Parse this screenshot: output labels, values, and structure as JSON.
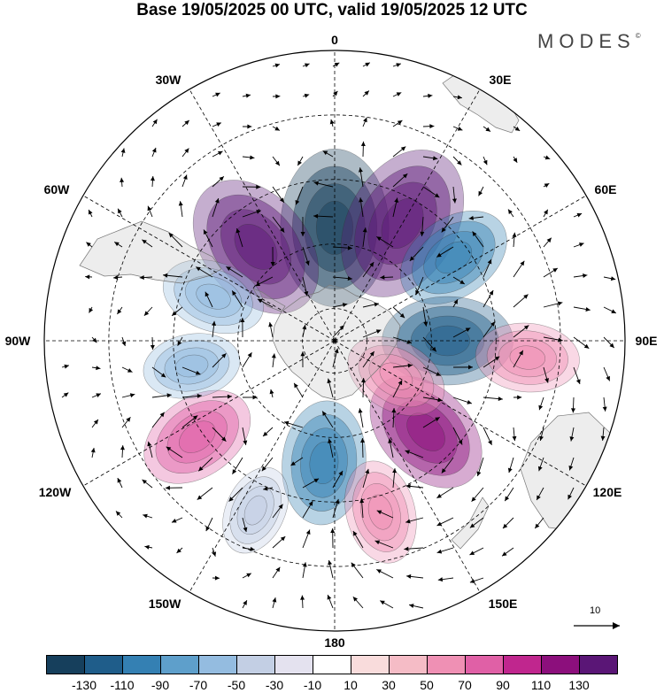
{
  "title": "Base 19/05/2025 00 UTC, valid 19/05/2025 12 UTC",
  "brand": "MODES",
  "brand_mark": "©",
  "longitude_labels": [
    "0",
    "30E",
    "60E",
    "90E",
    "120E",
    "150E",
    "180",
    "150W",
    "120W",
    "90W",
    "60W",
    "30W"
  ],
  "vector_reference": "10",
  "colorbar": {
    "colors": [
      "#163f5c",
      "#1f5d8a",
      "#3480b3",
      "#5e9fcb",
      "#94bce0",
      "#c3cfe4",
      "#e4e2ef",
      "#ffffff",
      "#f9dcdc",
      "#f5bcc6",
      "#ef90b4",
      "#e060a6",
      "#c0268e",
      "#8c0f7c",
      "#5a1676"
    ],
    "tick_labels": [
      "-130",
      "-110",
      "-90",
      "-70",
      "-50",
      "-30",
      "-10",
      "10",
      "30",
      "50",
      "70",
      "90",
      "110",
      "130"
    ]
  },
  "anomaly_centers": [
    {
      "lon_lat": "0E,-55",
      "value": -140,
      "color": "#163f5c"
    },
    {
      "lon_lat": "40W,-52",
      "value": 130,
      "color": "#5a1676"
    },
    {
      "lon_lat": "30E,-48",
      "value": 140,
      "color": "#5a1676"
    },
    {
      "lon_lat": "55E,-45",
      "value": -80,
      "color": "#3480b3"
    },
    {
      "lon_lat": "90E,-55",
      "value": -100,
      "color": "#1f5d8a"
    },
    {
      "lon_lat": "95E,-30",
      "value": 60,
      "color": "#ef90b4"
    },
    {
      "lon_lat": "135E,-50",
      "value": 100,
      "color": "#8c0f7c"
    },
    {
      "lon_lat": "120E,-68",
      "value": 60,
      "color": "#ef90b4"
    },
    {
      "lon_lat": "175W,-52",
      "value": -90,
      "color": "#3480b3"
    },
    {
      "lon_lat": "125W,-38",
      "value": 80,
      "color": "#e060a6"
    },
    {
      "lon_lat": "100W,-45",
      "value": -50,
      "color": "#94bce0"
    },
    {
      "lon_lat": "70W,-50",
      "value": -60,
      "color": "#94bce0"
    },
    {
      "lon_lat": "155W,-32",
      "value": -40,
      "color": "#c3cfe4"
    },
    {
      "lon_lat": "165E,-35",
      "value": 60,
      "color": "#ef90b4"
    }
  ]
}
